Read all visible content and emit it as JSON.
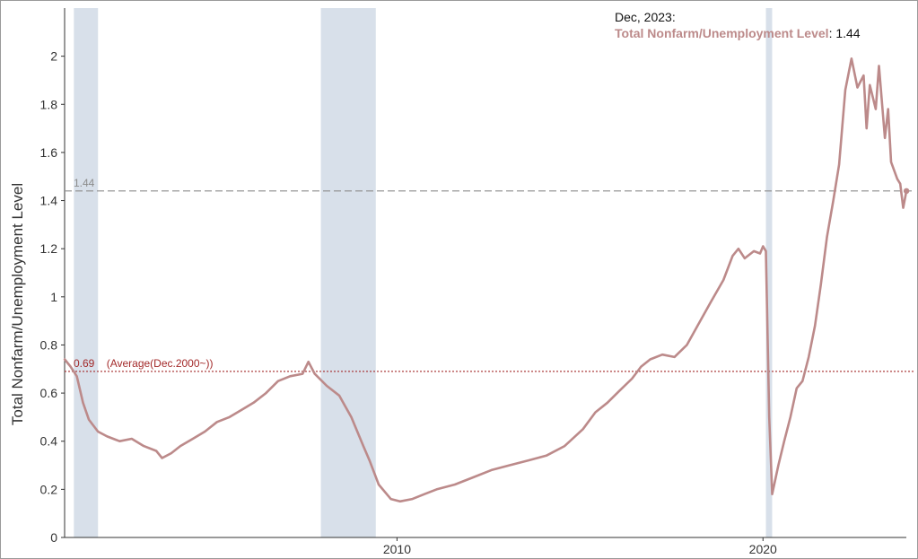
{
  "chart_data": {
    "type": "line",
    "ylabel": "Total Nonfarm/Unemployment Level",
    "xlabel": "",
    "x_range": [
      2000.917,
      2023.917
    ],
    "ylim": [
      0,
      2.2
    ],
    "x_ticks": [
      {
        "value": 2010,
        "label": "2010"
      },
      {
        "value": 2020,
        "label": "2020"
      }
    ],
    "y_ticks": [
      {
        "value": 0,
        "label": "0"
      },
      {
        "value": 0.2,
        "label": "0.2"
      },
      {
        "value": 0.4,
        "label": "0.4"
      },
      {
        "value": 0.6,
        "label": "0.6"
      },
      {
        "value": 0.8,
        "label": "0.8"
      },
      {
        "value": 1.0,
        "label": "1"
      },
      {
        "value": 1.2,
        "label": "1.2"
      },
      {
        "value": 1.4,
        "label": "1.4"
      },
      {
        "value": 1.6,
        "label": "1.6"
      },
      {
        "value": 1.8,
        "label": "1.8"
      },
      {
        "value": 2.0,
        "label": "2"
      }
    ],
    "grid": false,
    "line_color": "#bc8a8a",
    "recessions": [
      {
        "start": 2001.17,
        "end": 2001.83
      },
      {
        "start": 2007.92,
        "end": 2009.42
      },
      {
        "start": 2020.08,
        "end": 2020.25
      }
    ],
    "reference_lines": [
      {
        "y": 1.44,
        "label": "1.44",
        "color": "#8c8c8c",
        "style": "dashed"
      },
      {
        "y": 0.69,
        "label": "0.69    (Average(Dec.2000~))",
        "color": "#a32a2a",
        "style": "dotted"
      }
    ],
    "series": [
      {
        "name": "Total Nonfarm/Unemployment Level",
        "points": [
          [
            2000.92,
            0.74
          ],
          [
            2001.08,
            0.71
          ],
          [
            2001.25,
            0.67
          ],
          [
            2001.42,
            0.56
          ],
          [
            2001.58,
            0.49
          ],
          [
            2001.83,
            0.44
          ],
          [
            2002.08,
            0.42
          ],
          [
            2002.42,
            0.4
          ],
          [
            2002.75,
            0.41
          ],
          [
            2003.08,
            0.38
          ],
          [
            2003.42,
            0.36
          ],
          [
            2003.58,
            0.33
          ],
          [
            2003.83,
            0.35
          ],
          [
            2004.08,
            0.38
          ],
          [
            2004.42,
            0.41
          ],
          [
            2004.75,
            0.44
          ],
          [
            2005.08,
            0.48
          ],
          [
            2005.42,
            0.5
          ],
          [
            2005.75,
            0.53
          ],
          [
            2006.08,
            0.56
          ],
          [
            2006.42,
            0.6
          ],
          [
            2006.75,
            0.65
          ],
          [
            2007.08,
            0.67
          ],
          [
            2007.42,
            0.68
          ],
          [
            2007.58,
            0.73
          ],
          [
            2007.75,
            0.68
          ],
          [
            2008.08,
            0.63
          ],
          [
            2008.42,
            0.59
          ],
          [
            2008.75,
            0.5
          ],
          [
            2009.08,
            0.38
          ],
          [
            2009.25,
            0.32
          ],
          [
            2009.5,
            0.22
          ],
          [
            2009.83,
            0.16
          ],
          [
            2010.08,
            0.15
          ],
          [
            2010.42,
            0.16
          ],
          [
            2010.75,
            0.18
          ],
          [
            2011.08,
            0.2
          ],
          [
            2011.58,
            0.22
          ],
          [
            2012.08,
            0.25
          ],
          [
            2012.58,
            0.28
          ],
          [
            2013.08,
            0.3
          ],
          [
            2013.58,
            0.32
          ],
          [
            2014.08,
            0.34
          ],
          [
            2014.58,
            0.38
          ],
          [
            2015.08,
            0.45
          ],
          [
            2015.42,
            0.52
          ],
          [
            2015.75,
            0.56
          ],
          [
            2016.08,
            0.61
          ],
          [
            2016.42,
            0.66
          ],
          [
            2016.67,
            0.71
          ],
          [
            2016.92,
            0.74
          ],
          [
            2017.25,
            0.76
          ],
          [
            2017.58,
            0.75
          ],
          [
            2017.92,
            0.8
          ],
          [
            2018.25,
            0.89
          ],
          [
            2018.58,
            0.98
          ],
          [
            2018.92,
            1.07
          ],
          [
            2019.17,
            1.17
          ],
          [
            2019.33,
            1.2
          ],
          [
            2019.5,
            1.16
          ],
          [
            2019.75,
            1.19
          ],
          [
            2019.92,
            1.18
          ],
          [
            2020.0,
            1.21
          ],
          [
            2020.08,
            1.19
          ],
          [
            2020.17,
            0.5
          ],
          [
            2020.25,
            0.18
          ],
          [
            2020.42,
            0.3
          ],
          [
            2020.58,
            0.4
          ],
          [
            2020.75,
            0.5
          ],
          [
            2020.92,
            0.62
          ],
          [
            2021.08,
            0.65
          ],
          [
            2021.25,
            0.75
          ],
          [
            2021.42,
            0.88
          ],
          [
            2021.58,
            1.05
          ],
          [
            2021.75,
            1.25
          ],
          [
            2021.92,
            1.4
          ],
          [
            2022.08,
            1.55
          ],
          [
            2022.25,
            1.86
          ],
          [
            2022.42,
            1.99
          ],
          [
            2022.58,
            1.87
          ],
          [
            2022.75,
            1.92
          ],
          [
            2022.83,
            1.7
          ],
          [
            2022.92,
            1.88
          ],
          [
            2023.08,
            1.78
          ],
          [
            2023.17,
            1.96
          ],
          [
            2023.33,
            1.66
          ],
          [
            2023.42,
            1.78
          ],
          [
            2023.5,
            1.56
          ],
          [
            2023.67,
            1.49
          ],
          [
            2023.75,
            1.47
          ],
          [
            2023.83,
            1.37
          ],
          [
            2023.92,
            1.44
          ]
        ]
      }
    ]
  },
  "tooltip": {
    "date": "Dec, 2023:",
    "series_label": "Total Nonfarm/Unemployment Level",
    "separator": ": ",
    "value": "1.44",
    "series_color": "#bc8a8a"
  }
}
